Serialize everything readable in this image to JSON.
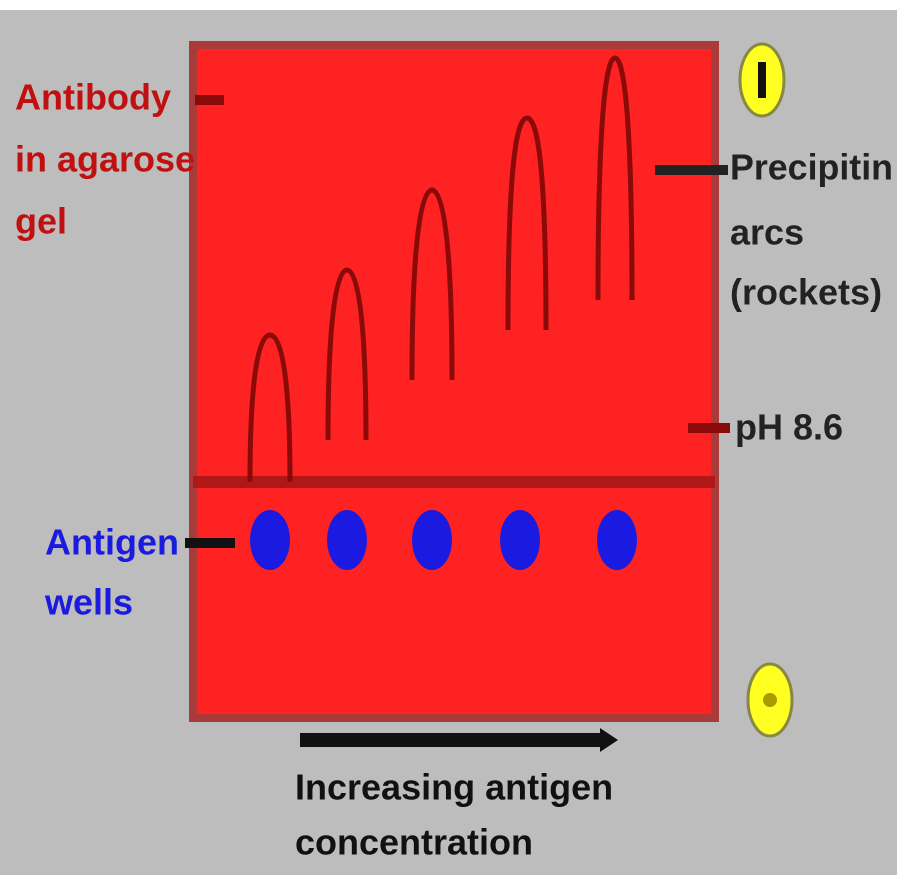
{
  "labels": {
    "antibody": [
      "Antibody",
      "in agarose",
      "gel"
    ],
    "arcs": [
      "Precipitin",
      "arcs",
      "(rockets)"
    ],
    "ph": "pH 8.6",
    "wells": [
      "Antigen",
      "wells"
    ],
    "concentration": [
      "Increasing antigen",
      "concentration"
    ]
  }
}
